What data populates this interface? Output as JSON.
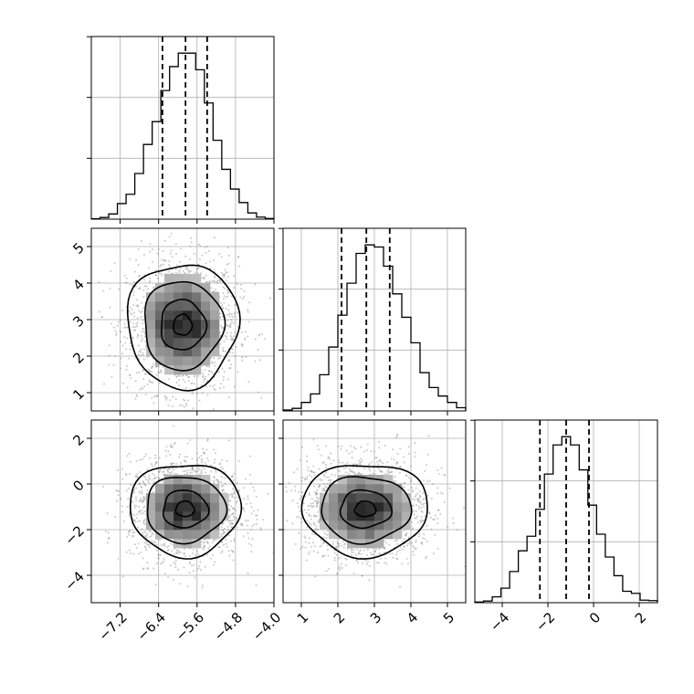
{
  "chart_data": {
    "type": "corner",
    "parameters": [
      {
        "range": [
          -7.8,
          -4.0
        ],
        "ticks": [
          -7.2,
          -6.4,
          -5.6,
          -4.8,
          -4.0
        ],
        "tick_labels": [
          "−7.2",
          "−6.4",
          "−5.6",
          "−4.8",
          "−4.0"
        ],
        "quantiles": [
          -6.32,
          -5.84,
          -5.39
        ],
        "hist": [
          2,
          8,
          25,
          75,
          120,
          220,
          360,
          470,
          620,
          735,
          800,
          800,
          720,
          560,
          380,
          240,
          145,
          80,
          30,
          10,
          3
        ]
      },
      {
        "range": [
          0.5,
          5.5
        ],
        "ticks": [
          1,
          2,
          3,
          4,
          5
        ],
        "tick_labels": [
          "1",
          "2",
          "3",
          "4",
          "5"
        ],
        "quantiles": [
          2.1,
          2.78,
          3.42
        ],
        "hist": [
          4,
          12,
          40,
          80,
          170,
          300,
          450,
          600,
          740,
          780,
          770,
          680,
          550,
          440,
          320,
          180,
          110,
          70,
          40,
          15
        ]
      },
      {
        "range": [
          -5.2,
          2.8
        ],
        "ticks": [
          -4,
          -2,
          0,
          2
        ],
        "tick_labels": [
          "−4",
          "−2",
          "0",
          "2"
        ],
        "quantiles": [
          -2.35,
          -1.2,
          -0.2
        ],
        "hist": [
          3,
          8,
          28,
          70,
          150,
          250,
          320,
          450,
          620,
          760,
          800,
          760,
          640,
          470,
          330,
          220,
          130,
          55,
          45,
          12,
          10
        ]
      }
    ],
    "pairs": [
      {
        "x": 0,
        "y": 1,
        "center": [
          -5.9,
          2.85
        ],
        "sigma": [
          0.55,
          0.88
        ]
      },
      {
        "x": 0,
        "y": 2,
        "center": [
          -5.85,
          -1.1
        ],
        "sigma": [
          0.55,
          1.05
        ]
      },
      {
        "x": 1,
        "y": 2,
        "center": [
          2.75,
          -1.1
        ],
        "sigma": [
          0.82,
          1.05
        ]
      }
    ],
    "grid": true,
    "colors": {
      "density_dark": "#222222",
      "points": "#888888",
      "lines": "#000000"
    }
  }
}
